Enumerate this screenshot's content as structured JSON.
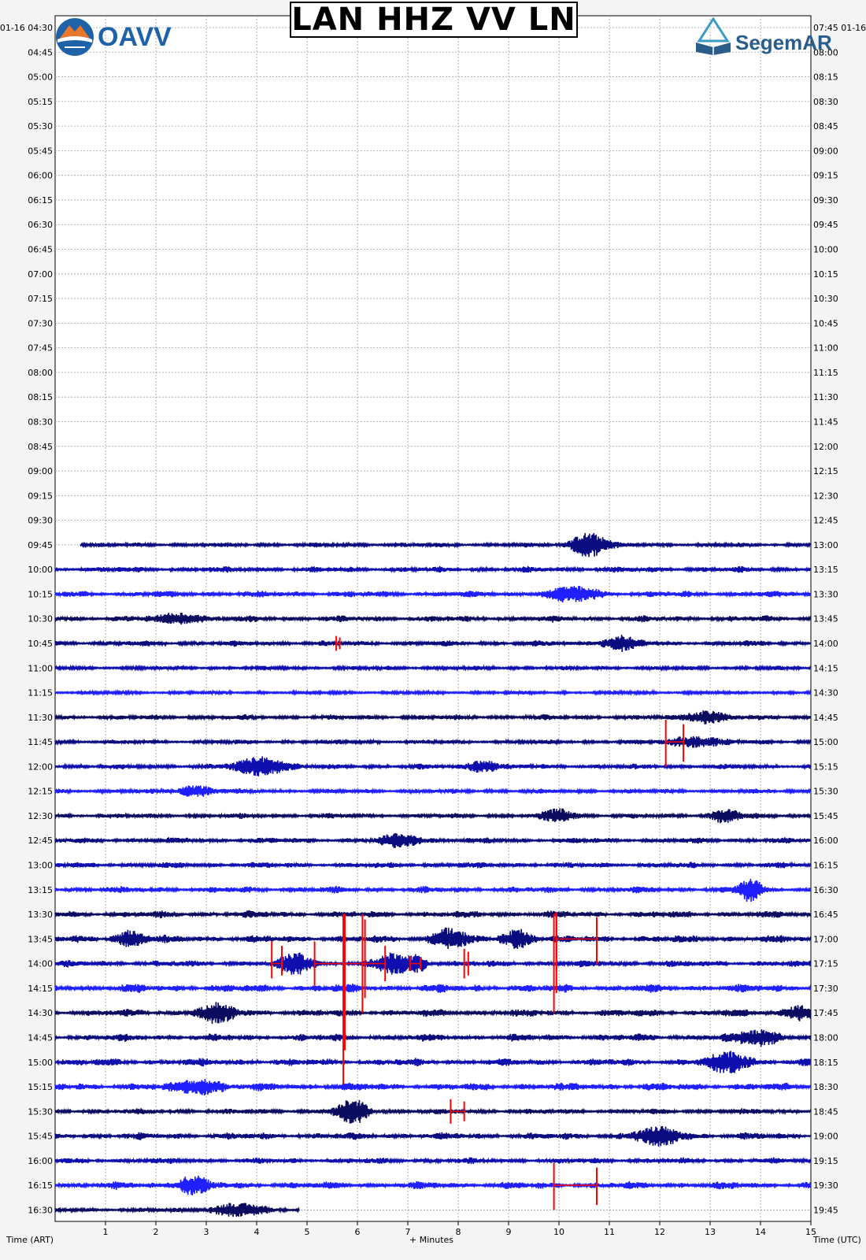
{
  "title": "LAN HHZ VV LN",
  "logos": {
    "left_text": "OAVV",
    "right_text": "SegemAR"
  },
  "axes": {
    "left_label": "Time (ART)",
    "right_label": "Time (UTC)",
    "x_label": "+ Minutes"
  },
  "colors": {
    "series_cycle": [
      "#0b0b60",
      "#0b0b80",
      "#0f0fb0",
      "#1f1fff"
    ],
    "pick": "#ff0000",
    "grid": "#a0a0a0"
  },
  "chart_data": {
    "type": "line",
    "title": "LAN HHZ VV LN",
    "xlabel": "+ Minutes",
    "xlim": [
      0,
      15
    ],
    "x_ticks": [
      1,
      2,
      3,
      4,
      5,
      6,
      7,
      8,
      9,
      10,
      11,
      12,
      13,
      14,
      15
    ],
    "grid": true,
    "first_left_tick": "01-16 04:30",
    "first_right_tick": "07:45 01-16",
    "left_ticks": [
      "04:45",
      "05:00",
      "05:15",
      "05:30",
      "05:45",
      "06:00",
      "06:15",
      "06:30",
      "06:45",
      "07:00",
      "07:15",
      "07:30",
      "07:45",
      "08:00",
      "08:15",
      "08:30",
      "08:45",
      "09:00",
      "09:15",
      "09:30",
      "09:45",
      "10:00",
      "10:15",
      "10:30",
      "10:45",
      "11:00",
      "11:15",
      "11:30",
      "11:45",
      "12:00",
      "12:15",
      "12:30",
      "12:45",
      "13:00",
      "13:15",
      "13:30",
      "13:45",
      "14:00",
      "14:15",
      "14:30",
      "14:45",
      "15:00",
      "15:15",
      "15:30",
      "15:45",
      "16:00",
      "16:15",
      "16:30"
    ],
    "right_ticks": [
      "08:00",
      "08:15",
      "08:30",
      "08:45",
      "09:00",
      "09:15",
      "09:30",
      "09:45",
      "10:00",
      "10:15",
      "10:30",
      "10:45",
      "11:00",
      "11:15",
      "11:30",
      "11:45",
      "12:00",
      "12:15",
      "12:30",
      "12:45",
      "13:00",
      "13:15",
      "13:30",
      "13:45",
      "14:00",
      "14:15",
      "14:30",
      "14:45",
      "15:00",
      "15:15",
      "15:30",
      "15:45",
      "16:00",
      "16:15",
      "16:30",
      "16:45",
      "17:00",
      "17:15",
      "17:30",
      "17:45",
      "18:00",
      "18:15",
      "18:30",
      "18:45",
      "19:00",
      "19:15",
      "19:30",
      "19:45"
    ],
    "traces": [
      {
        "row": 21,
        "start": 0.5,
        "end": 15,
        "amp": 0.2,
        "bursts": [
          [
            10.6,
            0.35,
            1.0
          ]
        ]
      },
      {
        "row": 22,
        "start": 0,
        "end": 15,
        "amp": 0.25,
        "bursts": []
      },
      {
        "row": 23,
        "start": 0,
        "end": 15,
        "amp": 0.28,
        "bursts": [
          [
            10.3,
            0.5,
            0.5
          ]
        ]
      },
      {
        "row": 24,
        "start": 0,
        "end": 15,
        "amp": 0.27,
        "bursts": [
          [
            2.5,
            0.4,
            0.45
          ]
        ]
      },
      {
        "row": 25,
        "start": 0,
        "end": 15,
        "amp": 0.24,
        "bursts": [
          [
            11.2,
            0.4,
            0.5
          ]
        ]
      },
      {
        "row": 26,
        "start": 0,
        "end": 15,
        "amp": 0.18,
        "bursts": []
      },
      {
        "row": 27,
        "start": 0,
        "end": 15,
        "amp": 0.16,
        "bursts": []
      },
      {
        "row": 28,
        "start": 0,
        "end": 15,
        "amp": 0.22,
        "bursts": [
          [
            12.9,
            0.4,
            0.5
          ]
        ]
      },
      {
        "row": 29,
        "start": 0,
        "end": 15,
        "amp": 0.2,
        "bursts": [
          [
            12.7,
            0.5,
            0.45
          ]
        ]
      },
      {
        "row": 30,
        "start": 0,
        "end": 15,
        "amp": 0.22,
        "bursts": [
          [
            4.1,
            0.5,
            0.75
          ],
          [
            8.5,
            0.3,
            0.5
          ]
        ]
      },
      {
        "row": 31,
        "start": 0,
        "end": 15,
        "amp": 0.2,
        "bursts": [
          [
            2.8,
            0.4,
            0.4
          ]
        ]
      },
      {
        "row": 32,
        "start": 0,
        "end": 15,
        "amp": 0.22,
        "bursts": [
          [
            10.0,
            0.3,
            0.5
          ],
          [
            13.3,
            0.3,
            0.5
          ]
        ]
      },
      {
        "row": 33,
        "start": 0,
        "end": 15,
        "amp": 0.25,
        "bursts": [
          [
            6.9,
            0.4,
            0.5
          ]
        ]
      },
      {
        "row": 34,
        "start": 0,
        "end": 15,
        "amp": 0.25,
        "bursts": []
      },
      {
        "row": 35,
        "start": 0,
        "end": 15,
        "amp": 0.28,
        "bursts": [
          [
            13.8,
            0.2,
            1.0
          ]
        ]
      },
      {
        "row": 36,
        "start": 0,
        "end": 15,
        "amp": 0.3,
        "bursts": []
      },
      {
        "row": 37,
        "start": 0,
        "end": 15,
        "amp": 0.32,
        "bursts": [
          [
            1.5,
            0.3,
            0.6
          ],
          [
            7.8,
            0.3,
            0.8
          ],
          [
            9.2,
            0.3,
            0.7
          ]
        ]
      },
      {
        "row": 38,
        "start": 0,
        "end": 15,
        "amp": 0.28,
        "bursts": [
          [
            4.8,
            0.3,
            0.8
          ],
          [
            6.7,
            0.3,
            0.8
          ],
          [
            7.2,
            0.2,
            0.6
          ]
        ]
      },
      {
        "row": 39,
        "start": 0,
        "end": 15,
        "amp": 0.36,
        "bursts": []
      },
      {
        "row": 40,
        "start": 0,
        "end": 15,
        "amp": 0.32,
        "bursts": [
          [
            3.2,
            0.4,
            0.6
          ],
          [
            14.8,
            0.3,
            0.6
          ]
        ]
      },
      {
        "row": 41,
        "start": 0,
        "end": 15,
        "amp": 0.32,
        "bursts": [
          [
            14.0,
            0.4,
            0.6
          ]
        ]
      },
      {
        "row": 42,
        "start": 0,
        "end": 15,
        "amp": 0.32,
        "bursts": [
          [
            13.4,
            0.4,
            0.8
          ]
        ]
      },
      {
        "row": 43,
        "start": 0,
        "end": 15,
        "amp": 0.34,
        "bursts": [
          [
            2.9,
            0.4,
            0.6
          ]
        ]
      },
      {
        "row": 44,
        "start": 0,
        "end": 15,
        "amp": 0.24,
        "bursts": [
          [
            5.9,
            0.3,
            1.0
          ]
        ]
      },
      {
        "row": 45,
        "start": 0,
        "end": 15,
        "amp": 0.3,
        "bursts": [
          [
            12.0,
            0.5,
            0.6
          ]
        ]
      },
      {
        "row": 46,
        "start": 0,
        "end": 15,
        "amp": 0.25,
        "bursts": []
      },
      {
        "row": 47,
        "start": 0,
        "end": 15,
        "amp": 0.32,
        "bursts": [
          [
            2.7,
            0.3,
            0.7
          ]
        ]
      },
      {
        "row": 48,
        "start": 0,
        "end": 4.85,
        "amp": 0.2,
        "bursts": [
          [
            3.6,
            0.5,
            0.5
          ]
        ]
      }
    ],
    "picks": [
      {
        "row": 25,
        "x1": 5.58,
        "x2": 5.65,
        "up": 0.3,
        "down": 0.3
      },
      {
        "row": 29,
        "x1": 12.12,
        "x2": 12.47,
        "up": 0.9,
        "down": 1.0
      },
      {
        "row": 36,
        "x1": 5.72,
        "x2": 5.75,
        "up": 0.0,
        "down": 6.9
      },
      {
        "row": 36,
        "x1": 9.9,
        "x2": 9.95,
        "up": 0.0,
        "down": 4.0
      },
      {
        "row": 37,
        "x1": 9.95,
        "x2": 10.75,
        "up": 1.1,
        "down": 1.3
      },
      {
        "row": 37,
        "x1": 6.1,
        "x2": 6.15,
        "up": 1.0,
        "down": 3.0
      },
      {
        "row": 38,
        "x1": 4.3,
        "x2": 4.5,
        "up": 0.9,
        "down": 0.6
      },
      {
        "row": 38,
        "x1": 5.15,
        "x2": 5.75,
        "up": 0.9,
        "down": 0.9
      },
      {
        "row": 38,
        "x1": 5.75,
        "x2": 6.55,
        "up": 0.9,
        "down": 0.9
      },
      {
        "row": 38,
        "x1": 7.05,
        "x2": 7.25,
        "up": 0.3,
        "down": 0.3
      },
      {
        "row": 38,
        "x1": 8.12,
        "x2": 8.2,
        "up": 0.6,
        "down": 0.6
      },
      {
        "row": 44,
        "x1": 7.85,
        "x2": 8.12,
        "up": 0.5,
        "down": 0.5
      },
      {
        "row": 47,
        "x1": 9.9,
        "x2": 10.75,
        "up": 0.9,
        "down": 1.0
      }
    ]
  }
}
